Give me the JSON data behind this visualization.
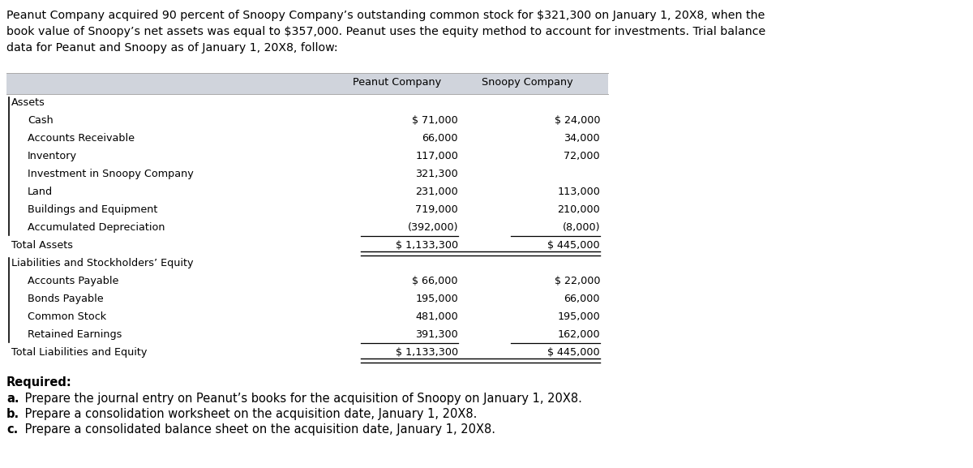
{
  "intro_text": "Peanut Company acquired 90 percent of Snoopy Company’s outstanding common stock for $321,300 on January 1, 20X8, when the\nbook value of Snoopy’s net assets was equal to $357,000. Peanut uses the equity method to account for investments. Trial balance\ndata for Peanut and Snoopy as of January 1, 20X8, follow:",
  "header_col1": "Peanut Company",
  "header_col2": "Snoopy Company",
  "header_bg": "#d0d4dc",
  "bg_color": "#ffffff",
  "rows": [
    {
      "label": "Assets",
      "peanut": "",
      "snoopy": "",
      "indent": 0,
      "total": false,
      "underline": false,
      "section_header": true
    },
    {
      "label": "Cash",
      "peanut": "$ 71,000",
      "snoopy": "$ 24,000",
      "indent": 1,
      "total": false,
      "underline": false,
      "section_header": false
    },
    {
      "label": "Accounts Receivable",
      "peanut": "66,000",
      "snoopy": "34,000",
      "indent": 1,
      "total": false,
      "underline": false,
      "section_header": false
    },
    {
      "label": "Inventory",
      "peanut": "117,000",
      "snoopy": "72,000",
      "indent": 1,
      "total": false,
      "underline": false,
      "section_header": false
    },
    {
      "label": "Investment in Snoopy Company",
      "peanut": "321,300",
      "snoopy": "",
      "indent": 1,
      "total": false,
      "underline": false,
      "section_header": false
    },
    {
      "label": "Land",
      "peanut": "231,000",
      "snoopy": "113,000",
      "indent": 1,
      "total": false,
      "underline": false,
      "section_header": false
    },
    {
      "label": "Buildings and Equipment",
      "peanut": "719,000",
      "snoopy": "210,000",
      "indent": 1,
      "total": false,
      "underline": false,
      "section_header": false
    },
    {
      "label": "Accumulated Depreciation",
      "peanut": "(392,000)",
      "snoopy": "(8,000)",
      "indent": 1,
      "total": false,
      "underline": true,
      "section_header": false
    },
    {
      "label": "Total Assets",
      "peanut": "$ 1,133,300",
      "snoopy": "$ 445,000",
      "indent": 0,
      "total": true,
      "underline": false,
      "section_header": false
    },
    {
      "label": "Liabilities and Stockholders’ Equity",
      "peanut": "",
      "snoopy": "",
      "indent": 0,
      "total": false,
      "underline": false,
      "section_header": true
    },
    {
      "label": "Accounts Payable",
      "peanut": "$ 66,000",
      "snoopy": "$ 22,000",
      "indent": 1,
      "total": false,
      "underline": false,
      "section_header": false
    },
    {
      "label": "Bonds Payable",
      "peanut": "195,000",
      "snoopy": "66,000",
      "indent": 1,
      "total": false,
      "underline": false,
      "section_header": false
    },
    {
      "label": "Common Stock",
      "peanut": "481,000",
      "snoopy": "195,000",
      "indent": 1,
      "total": false,
      "underline": false,
      "section_header": false
    },
    {
      "label": "Retained Earnings",
      "peanut": "391,300",
      "snoopy": "162,000",
      "indent": 1,
      "total": false,
      "underline": true,
      "section_header": false
    },
    {
      "label": "Total Liabilities and Equity",
      "peanut": "$ 1,133,300",
      "snoopy": "$ 445,000",
      "indent": 0,
      "total": true,
      "underline": false,
      "section_header": false
    }
  ],
  "required_text": "Required:",
  "required_items": [
    {
      "bold": "a.",
      "rest": " Prepare the journal entry on Peanut’s books for the acquisition of Snoopy on January 1, 20X8."
    },
    {
      "bold": "b.",
      "rest": " Prepare a consolidation worksheet on the acquisition date, January 1, 20X8."
    },
    {
      "bold": "c.",
      "rest": " Prepare a consolidated balance sheet on the acquisition date, January 1, 20X8."
    }
  ],
  "fs_intro": 10.2,
  "fs_table": 9.2,
  "fs_req": 10.5,
  "mono_font": "Courier New"
}
